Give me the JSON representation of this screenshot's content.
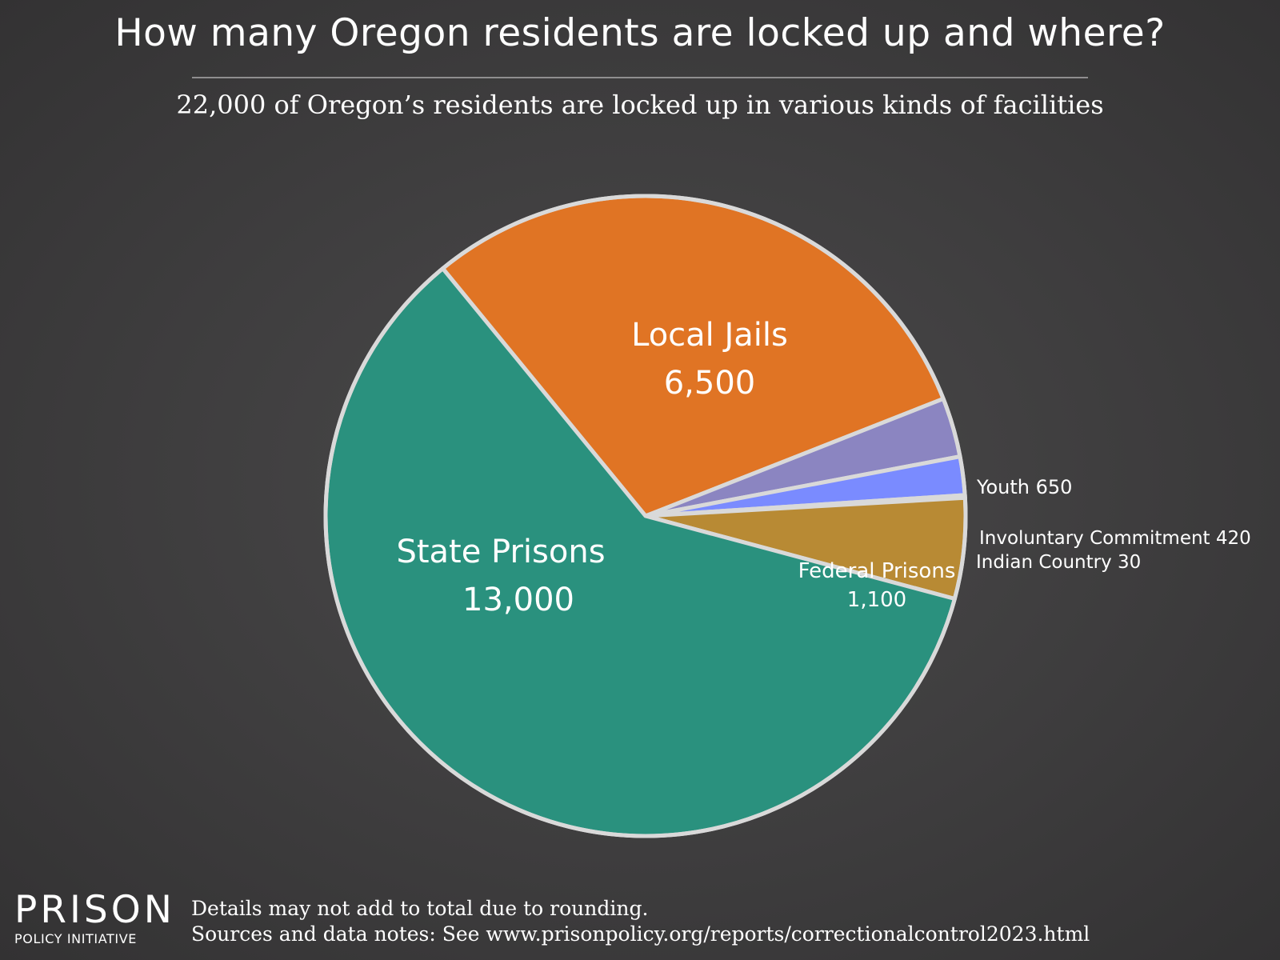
{
  "header": {
    "title": "How many Oregon residents are locked up and where?",
    "subtitle": "22,000 of Oregon’s residents are locked up in various kinds of facilities"
  },
  "chart_data": {
    "type": "pie",
    "title": "How many Oregon residents are locked up and where?",
    "subtitle": "22,000 of Oregon’s residents are locked up in various kinds of facilities",
    "slices": [
      {
        "name": "Local Jails",
        "value": 6500,
        "value_label": "6,500",
        "color": "#e07424",
        "label_position": "inside"
      },
      {
        "name": "Youth",
        "value": 650,
        "value_label": "650",
        "color": "#8b85c1",
        "label_position": "outside"
      },
      {
        "name": "Involuntary Commitment",
        "value": 420,
        "value_label": "420",
        "color": "#7a8bff",
        "label_position": "outside"
      },
      {
        "name": "Indian Country",
        "value": 30,
        "value_label": "30",
        "color": "#b08bd0",
        "label_position": "outside"
      },
      {
        "name": "Federal Prisons",
        "value": 1100,
        "value_label": "1,100",
        "color": "#b88a34",
        "label_position": "inside"
      },
      {
        "name": "State Prisons",
        "value": 13000,
        "value_label": "13,000",
        "color": "#2a917e",
        "label_position": "inside"
      }
    ],
    "border_color": "#d9d9d9"
  },
  "footer": {
    "logo_top": "PRISON",
    "logo_bottom": "POLICY INITIATIVE",
    "note": "Details may not add to total due to rounding.",
    "sources": "Sources and data notes: See www.prisonpolicy.org/reports/correctionalcontrol2023.html"
  }
}
